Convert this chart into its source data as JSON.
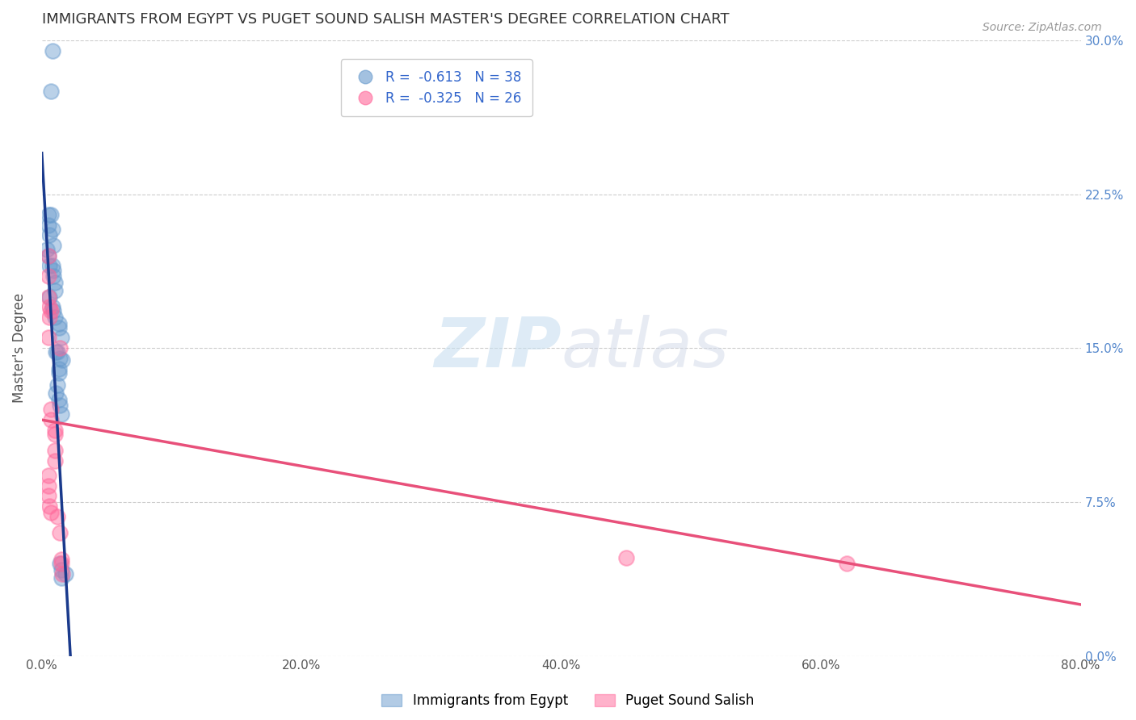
{
  "title": "IMMIGRANTS FROM EGYPT VS PUGET SOUND SALISH MASTER'S DEGREE CORRELATION CHART",
  "source": "Source: ZipAtlas.com",
  "ylabel": "Master's Degree",
  "xlabel_ticks": [
    "0.0%",
    "20.0%",
    "40.0%",
    "60.0%",
    "80.0%"
  ],
  "xlabel_tick_vals": [
    0.0,
    0.2,
    0.4,
    0.6,
    0.8
  ],
  "ylabel_ticks": [
    "0.0%",
    "7.5%",
    "15.0%",
    "22.5%",
    "30.0%"
  ],
  "ylabel_tick_vals": [
    0.0,
    0.075,
    0.15,
    0.225,
    0.3
  ],
  "xlim": [
    0.0,
    0.8
  ],
  "ylim": [
    0.0,
    0.3
  ],
  "blue_R": "-0.613",
  "blue_N": "38",
  "pink_R": "-0.325",
  "pink_N": "26",
  "legend_label_blue": "Immigrants from Egypt",
  "legend_label_pink": "Puget Sound Salish",
  "blue_color": "#6699CC",
  "pink_color": "#FF6699",
  "blue_scatter": [
    [
      0.008,
      0.295
    ],
    [
      0.007,
      0.275
    ],
    [
      0.005,
      0.215
    ],
    [
      0.007,
      0.215
    ],
    [
      0.005,
      0.21
    ],
    [
      0.008,
      0.208
    ],
    [
      0.006,
      0.205
    ],
    [
      0.009,
      0.2
    ],
    [
      0.004,
      0.198
    ],
    [
      0.005,
      0.195
    ],
    [
      0.006,
      0.19
    ],
    [
      0.008,
      0.19
    ],
    [
      0.009,
      0.188
    ],
    [
      0.009,
      0.185
    ],
    [
      0.01,
      0.182
    ],
    [
      0.01,
      0.178
    ],
    [
      0.006,
      0.175
    ],
    [
      0.008,
      0.17
    ],
    [
      0.009,
      0.168
    ],
    [
      0.01,
      0.165
    ],
    [
      0.013,
      0.162
    ],
    [
      0.013,
      0.16
    ],
    [
      0.015,
      0.155
    ],
    [
      0.011,
      0.148
    ],
    [
      0.012,
      0.148
    ],
    [
      0.014,
      0.145
    ],
    [
      0.016,
      0.144
    ],
    [
      0.013,
      0.14
    ],
    [
      0.013,
      0.138
    ],
    [
      0.012,
      0.132
    ],
    [
      0.011,
      0.128
    ],
    [
      0.013,
      0.125
    ],
    [
      0.014,
      0.122
    ],
    [
      0.015,
      0.118
    ],
    [
      0.014,
      0.045
    ],
    [
      0.015,
      0.042
    ],
    [
      0.015,
      0.038
    ],
    [
      0.018,
      0.04
    ]
  ],
  "pink_scatter": [
    [
      0.005,
      0.195
    ],
    [
      0.005,
      0.185
    ],
    [
      0.005,
      0.175
    ],
    [
      0.006,
      0.17
    ],
    [
      0.007,
      0.168
    ],
    [
      0.006,
      0.165
    ],
    [
      0.005,
      0.155
    ],
    [
      0.014,
      0.15
    ],
    [
      0.007,
      0.12
    ],
    [
      0.007,
      0.115
    ],
    [
      0.01,
      0.11
    ],
    [
      0.01,
      0.108
    ],
    [
      0.01,
      0.1
    ],
    [
      0.01,
      0.095
    ],
    [
      0.005,
      0.088
    ],
    [
      0.005,
      0.083
    ],
    [
      0.005,
      0.078
    ],
    [
      0.006,
      0.073
    ],
    [
      0.007,
      0.07
    ],
    [
      0.012,
      0.068
    ],
    [
      0.014,
      0.06
    ],
    [
      0.015,
      0.047
    ],
    [
      0.015,
      0.045
    ],
    [
      0.016,
      0.04
    ],
    [
      0.45,
      0.048
    ],
    [
      0.62,
      0.045
    ]
  ],
  "blue_line_x": [
    0.0,
    0.022
  ],
  "blue_line_y": [
    0.245,
    0.0
  ],
  "pink_line_x": [
    0.0,
    0.8
  ],
  "pink_line_y": [
    0.115,
    0.025
  ],
  "watermark_zip": "ZIP",
  "watermark_atlas": "atlas",
  "background_color": "#ffffff",
  "grid_color": "#cccccc"
}
